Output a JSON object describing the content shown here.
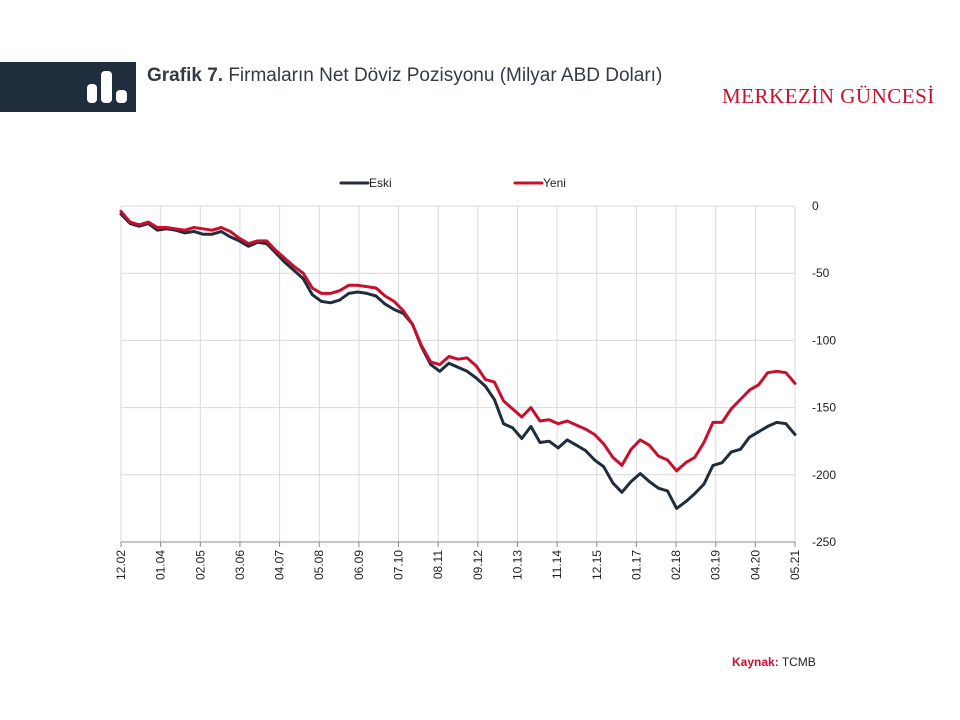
{
  "header": {
    "title_bold": "Grafik 7.",
    "title_rest": "Firmaların Net Döviz Pozisyonu (Milyar ABD Doları)",
    "brand": "MERKEZİN GÜNCESİ",
    "icon": "bar-chart-icon"
  },
  "source": {
    "label": "Kaynak:",
    "value": "TCMB"
  },
  "colors": {
    "eski": "#1f2d3d",
    "yeni": "#c8102e",
    "grid": "#d9d9d9",
    "band": "#1f2d3d",
    "brand": "#c8102e"
  },
  "chart_data": {
    "type": "line",
    "legend_position": "top",
    "grid": true,
    "ylim": [
      -250,
      0
    ],
    "yticks": [
      0,
      -50,
      -100,
      -150,
      -200,
      -250
    ],
    "xticks": [
      "12.02",
      "01.04",
      "02.05",
      "03.06",
      "04.07",
      "05.08",
      "06.09",
      "07.10",
      "08.11",
      "09.12",
      "10.13",
      "11.14",
      "12.15",
      "01.17",
      "02.18",
      "03.19",
      "04.20",
      "05.21"
    ],
    "series": [
      {
        "name": "Eski",
        "color": "#1f2d3d",
        "values": [
          -6,
          -13,
          -15,
          -13,
          -18,
          -17,
          -18,
          -20,
          -19,
          -21,
          -21,
          -19,
          -23,
          -26,
          -30,
          -27,
          -28,
          -35,
          -42,
          -48,
          -54,
          -66,
          -71,
          -72,
          -70,
          -65,
          -64,
          -65,
          -67,
          -73,
          -77,
          -80,
          -88,
          -105,
          -118,
          -123,
          -117,
          -120,
          -123,
          -128,
          -134,
          -144,
          -162,
          -165,
          -173,
          -164,
          -176,
          -175,
          -180,
          -174,
          -178,
          -182,
          -189,
          -194,
          -206,
          -213,
          -205,
          -199,
          -205,
          -210,
          -212,
          -225,
          -220,
          -214,
          -207,
          -193,
          -191,
          -183,
          -181,
          -172,
          -168,
          -164,
          -161,
          -162,
          -170
        ]
      },
      {
        "name": "Yeni",
        "color": "#c8102e",
        "values": [
          -4,
          -12,
          -14,
          -12,
          -16,
          -16,
          -17,
          -18,
          -16,
          -17,
          -18,
          -16,
          -19,
          -24,
          -28,
          -26,
          -26,
          -33,
          -39,
          -45,
          -50,
          -61,
          -65,
          -65,
          -63,
          -59,
          -59,
          -60,
          -61,
          -67,
          -71,
          -78,
          -88,
          -104,
          -116,
          -118,
          -112,
          -114,
          -113,
          -119,
          -129,
          -131,
          -145,
          -151,
          -157,
          -150,
          -160,
          -159,
          -162,
          -160,
          -163,
          -166,
          -170,
          -177,
          -187,
          -193,
          -181,
          -174,
          -178,
          -186,
          -189,
          -197,
          -191,
          -187,
          -176,
          -161,
          -161,
          -151,
          -144,
          -137,
          -133,
          -124,
          -123,
          -124,
          -132
        ]
      }
    ]
  }
}
